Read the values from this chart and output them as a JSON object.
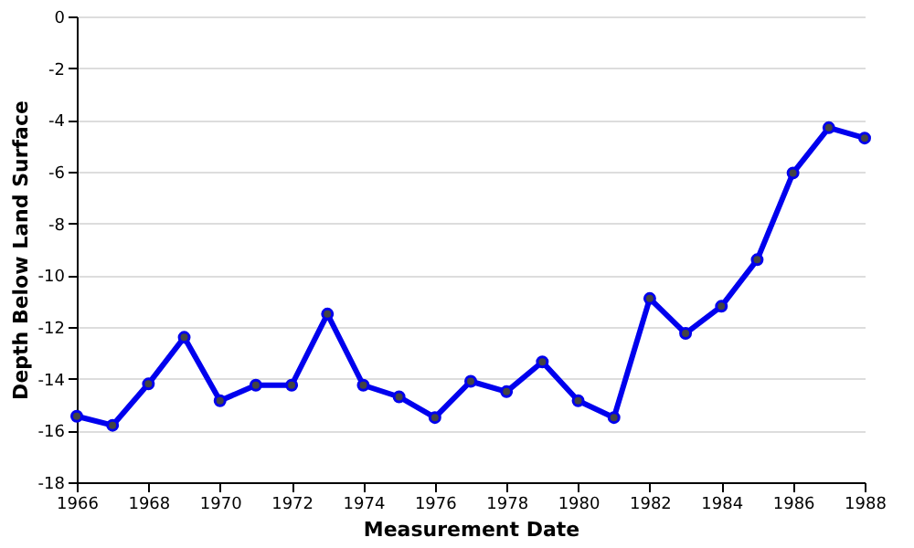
{
  "chart_data": {
    "type": "line",
    "xlabel": "Measurement Date",
    "ylabel": "Depth Below Land Surface",
    "x": [
      1966,
      1967,
      1968,
      1969,
      1970,
      1971,
      1972,
      1973,
      1974,
      1975,
      1976,
      1977,
      1978,
      1979,
      1980,
      1981,
      1982,
      1983,
      1984,
      1985,
      1986,
      1987,
      1988
    ],
    "series": [
      {
        "color": "#0000ee",
        "values": [
          -15.45,
          -15.8,
          -14.2,
          -12.4,
          -14.85,
          -14.25,
          -14.25,
          -11.5,
          -14.25,
          -14.7,
          -15.5,
          -14.1,
          -14.5,
          -13.35,
          -14.85,
          -15.5,
          -10.9,
          -12.25,
          -11.2,
          -9.4,
          -6.05,
          -4.3,
          -4.7
        ]
      }
    ],
    "xlim": [
      1966,
      1988
    ],
    "xticks": [
      1966,
      1968,
      1970,
      1972,
      1974,
      1976,
      1978,
      1980,
      1982,
      1984,
      1986,
      1988
    ],
    "ylim": [
      -18,
      0
    ],
    "yticks": [
      -18,
      -16,
      -14,
      -12,
      -10,
      -8,
      -6,
      -4,
      -2,
      0
    ],
    "grid": "y",
    "marker": "circle",
    "line_style": "solid"
  }
}
